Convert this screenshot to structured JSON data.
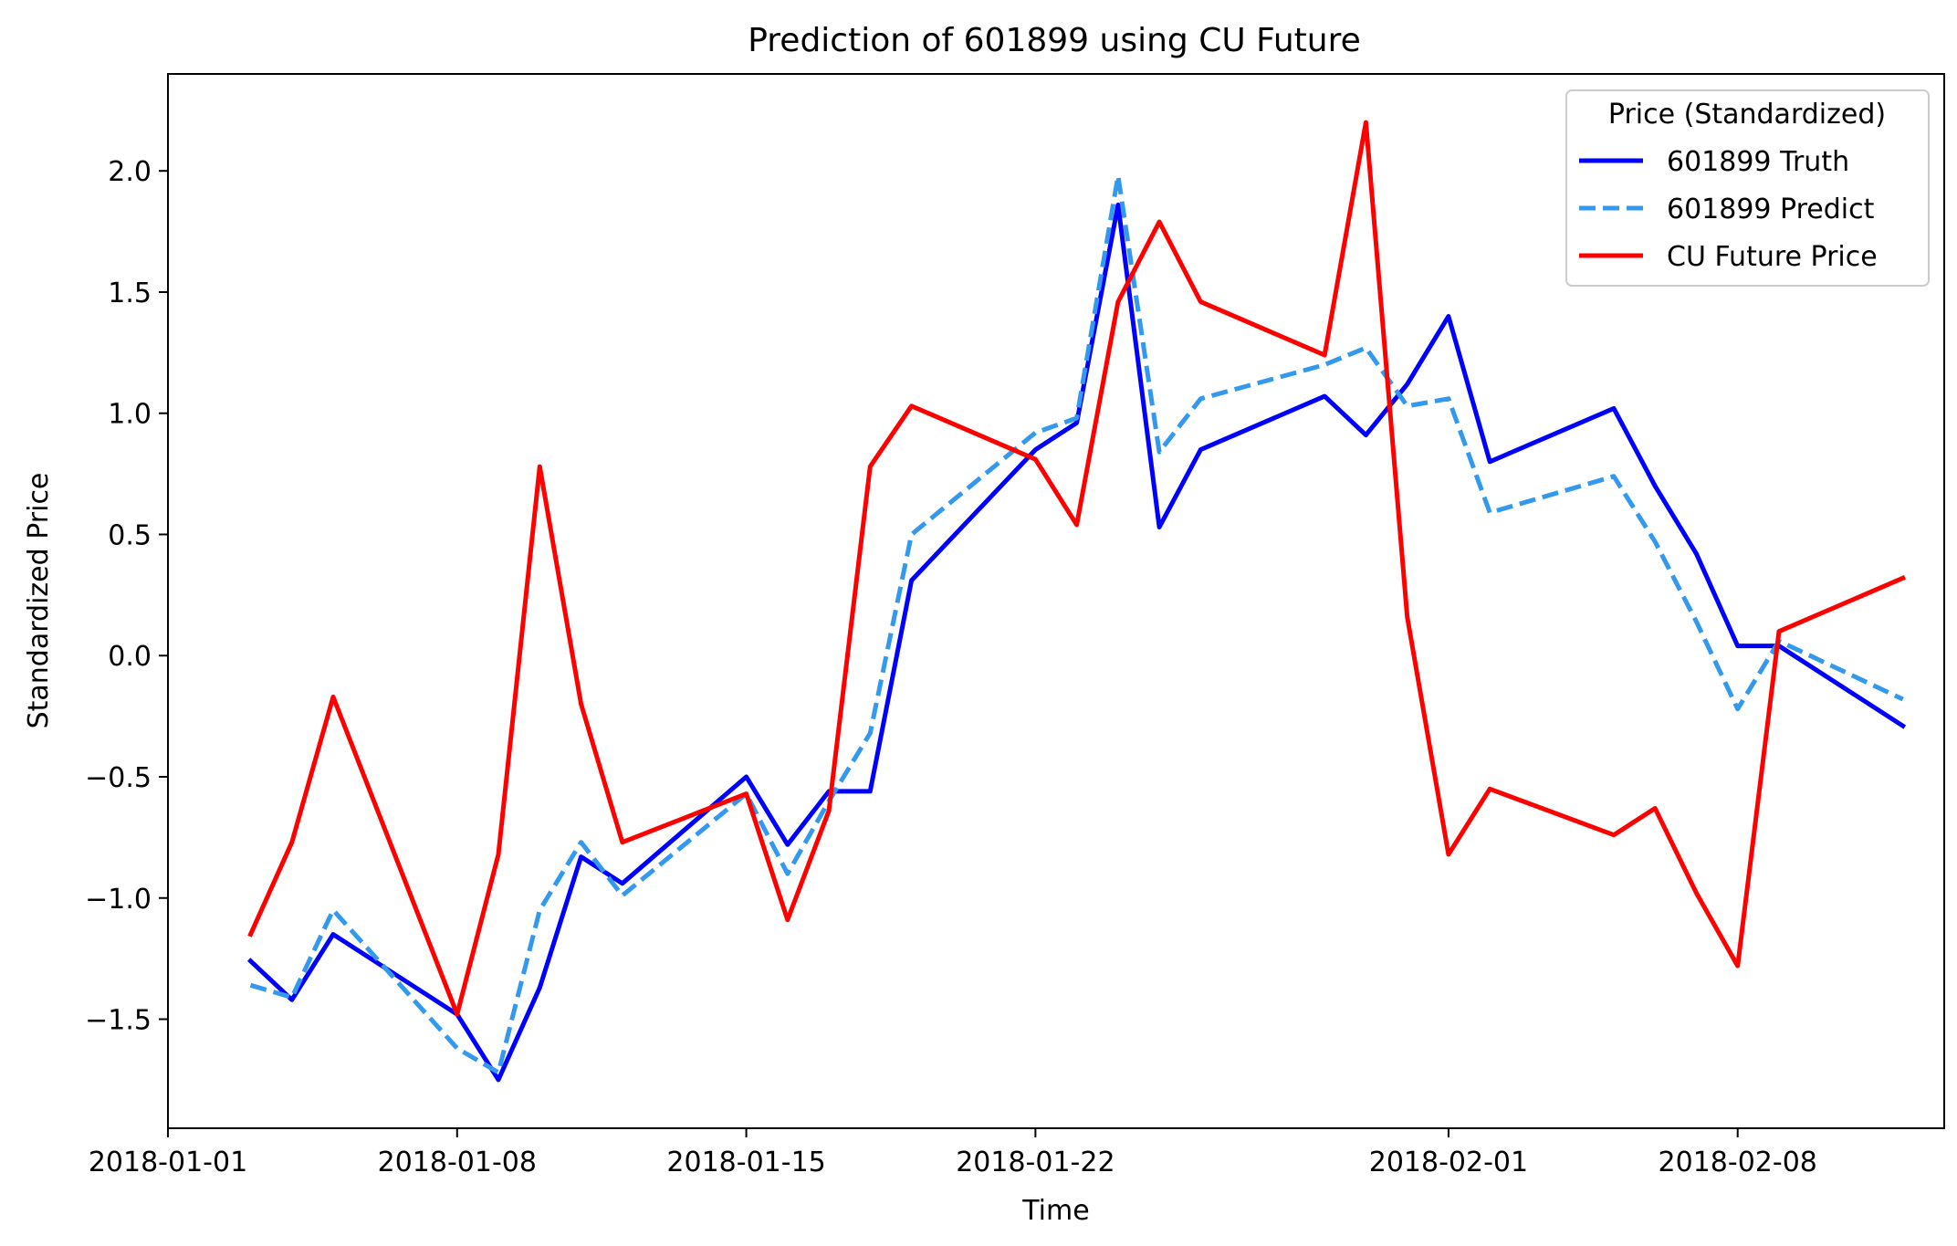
{
  "chart_data": {
    "type": "line",
    "title": "Prediction of 601899 using CU Future",
    "xlabel": "Time",
    "ylabel": "Standardized Price",
    "xlim": [
      "2018-01-01",
      "2018-02-13"
    ],
    "ylim": [
      -1.95,
      2.4
    ],
    "grid": false,
    "x_ticks": [
      "2018-01-01",
      "2018-01-08",
      "2018-01-15",
      "2018-01-22",
      "2018-02-01",
      "2018-02-08"
    ],
    "y_ticks": [
      {
        "value": 2.0,
        "label": "2.0"
      },
      {
        "value": 1.5,
        "label": "1.5"
      },
      {
        "value": 1.0,
        "label": "1.0"
      },
      {
        "value": 0.5,
        "label": "0.5"
      },
      {
        "value": 0.0,
        "label": "0.0"
      },
      {
        "value": -0.5,
        "label": "−0.5"
      },
      {
        "value": -1.0,
        "label": "−1.0"
      },
      {
        "value": -1.5,
        "label": "−1.5"
      }
    ],
    "legend": {
      "title": "Price (Standardized)",
      "placement": "top-right"
    },
    "x": [
      "2018-01-03",
      "2018-01-04",
      "2018-01-05",
      "2018-01-08",
      "2018-01-09",
      "2018-01-10",
      "2018-01-11",
      "2018-01-12",
      "2018-01-15",
      "2018-01-16",
      "2018-01-17",
      "2018-01-18",
      "2018-01-19",
      "2018-01-22",
      "2018-01-23",
      "2018-01-24",
      "2018-01-25",
      "2018-01-26",
      "2018-01-29",
      "2018-01-30",
      "2018-01-31",
      "2018-02-01",
      "2018-02-02",
      "2018-02-05",
      "2018-02-06",
      "2018-02-07",
      "2018-02-08",
      "2018-02-09",
      "2018-02-12"
    ],
    "series": [
      {
        "name": "601899 Truth",
        "color": "#0000ff",
        "style": "solid",
        "values": [
          -1.26,
          -1.42,
          -1.15,
          -1.48,
          -1.75,
          -1.37,
          -0.83,
          -0.94,
          -0.5,
          -0.78,
          -0.56,
          -0.56,
          0.31,
          0.85,
          0.96,
          1.86,
          0.53,
          0.85,
          1.07,
          0.91,
          1.12,
          1.4,
          0.8,
          1.02,
          0.7,
          0.42,
          0.04,
          0.04,
          -0.29
        ]
      },
      {
        "name": "601899 Predict",
        "color": "#3399ee",
        "style": "dashed",
        "values": [
          -1.36,
          -1.41,
          -1.05,
          -1.62,
          -1.72,
          -1.05,
          -0.77,
          -0.99,
          -0.57,
          -0.9,
          -0.6,
          -0.32,
          0.5,
          0.92,
          0.98,
          1.98,
          0.84,
          1.06,
          1.2,
          1.27,
          1.03,
          1.06,
          0.59,
          0.74,
          0.47,
          0.14,
          -0.22,
          0.06,
          -0.18
        ]
      },
      {
        "name": "CU Future Price",
        "color": "#ff0000",
        "style": "solid",
        "values": [
          -1.15,
          -0.77,
          -0.17,
          -1.48,
          -0.82,
          0.78,
          -0.2,
          -0.77,
          -0.57,
          -1.09,
          -0.64,
          0.78,
          1.03,
          0.81,
          0.54,
          1.46,
          1.79,
          1.46,
          1.24,
          2.2,
          0.16,
          -0.82,
          -0.55,
          -0.74,
          -0.63,
          -0.98,
          -1.28,
          0.1,
          0.32
        ]
      }
    ]
  }
}
